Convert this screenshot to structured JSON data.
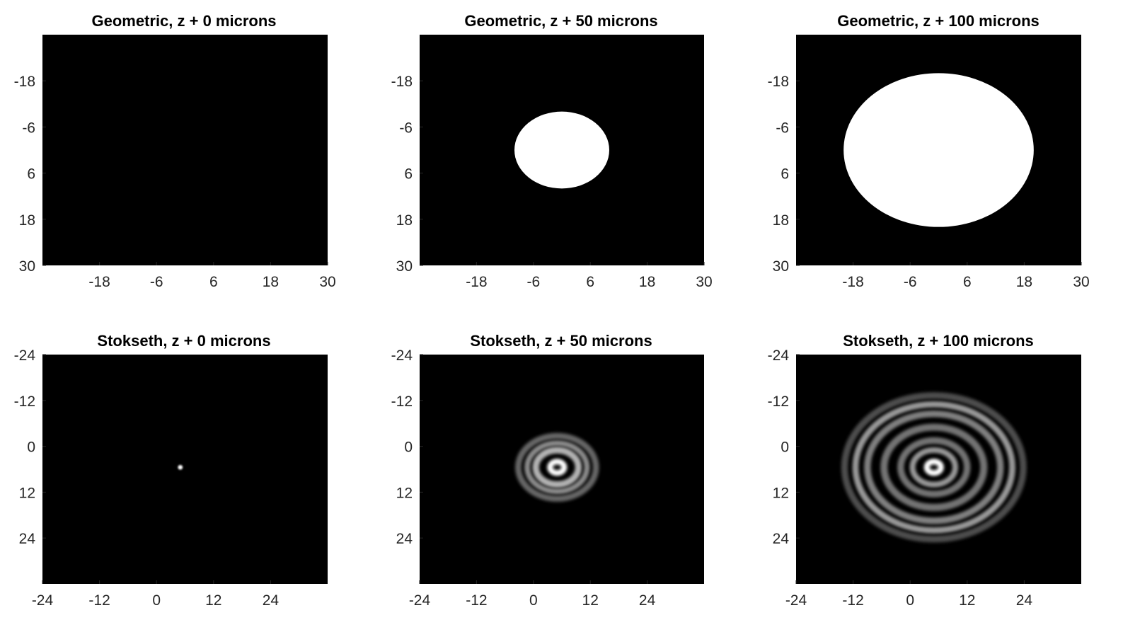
{
  "chart_data": [
    {
      "type": "heatmap",
      "title": "Geometric, z + 0 microns",
      "colormap": "gray",
      "background": "#000000",
      "xticks": [
        -18,
        -6,
        6,
        18,
        30
      ],
      "yticks": [
        -18,
        -6,
        6,
        18,
        30
      ],
      "xlim": [
        -30,
        30
      ],
      "ylim": [
        -30,
        30
      ],
      "y_direction": "down",
      "features": []
    },
    {
      "type": "heatmap",
      "title": "Geometric, z + 50 microns",
      "colormap": "gray",
      "background": "#000000",
      "xticks": [
        -18,
        -6,
        6,
        18,
        30
      ],
      "yticks": [
        -18,
        -6,
        6,
        18,
        30
      ],
      "xlim": [
        -30,
        30
      ],
      "ylim": [
        -30,
        30
      ],
      "y_direction": "down",
      "features": [
        {
          "kind": "disk",
          "cx": 0,
          "cy": 0,
          "rx": 10,
          "ry": 10,
          "intensity": 1.0
        }
      ]
    },
    {
      "type": "heatmap",
      "title": "Geometric, z + 100 microns",
      "colormap": "gray",
      "background": "#000000",
      "xticks": [
        -18,
        -6,
        6,
        18,
        30
      ],
      "yticks": [
        -18,
        -6,
        6,
        18,
        30
      ],
      "xlim": [
        -30,
        30
      ],
      "ylim": [
        -30,
        30
      ],
      "y_direction": "down",
      "features": [
        {
          "kind": "disk",
          "cx": 0,
          "cy": 0,
          "rx": 20,
          "ry": 20,
          "intensity": 1.0
        }
      ]
    },
    {
      "type": "heatmap",
      "title": "Stokseth, z + 0 microns",
      "colormap": "gray",
      "background": "#000000",
      "xticks": [
        -24,
        -12,
        0,
        12,
        24
      ],
      "yticks": [
        -24,
        -12,
        0,
        12,
        24
      ],
      "xlim": [
        -24,
        36
      ],
      "ylim": [
        -24,
        36
      ],
      "y_direction": "down",
      "features": [
        {
          "kind": "spot",
          "cx": 5,
          "cy": 5.5,
          "r": 0.5,
          "intensity": 1.0
        }
      ]
    },
    {
      "type": "heatmap",
      "title": "Stokseth, z + 50 microns",
      "colormap": "gray",
      "background": "#000000",
      "xticks": [
        -24,
        -12,
        0,
        12,
        24
      ],
      "yticks": [
        -24,
        -12,
        0,
        12,
        24
      ],
      "xlim": [
        -24,
        36
      ],
      "ylim": [
        -24,
        36
      ],
      "y_direction": "down",
      "features": [
        {
          "kind": "disk",
          "cx": 5,
          "cy": 5.5,
          "rx": 0.8,
          "ry": 0.8,
          "intensity": 0.05
        },
        {
          "kind": "ring",
          "cx": 5,
          "cy": 5.5,
          "r": 1.5,
          "width": 1.2,
          "intensity": 1.0
        },
        {
          "kind": "ring",
          "cx": 5,
          "cy": 5.5,
          "r": 4.5,
          "width": 1.4,
          "intensity": 0.7
        },
        {
          "kind": "ring",
          "cx": 5,
          "cy": 5.5,
          "r": 6.3,
          "width": 1.2,
          "intensity": 0.55
        },
        {
          "kind": "ring",
          "cx": 5,
          "cy": 5.5,
          "r": 8.2,
          "width": 1.3,
          "intensity": 0.4
        }
      ]
    },
    {
      "type": "heatmap",
      "title": "Stokseth, z + 100 microns",
      "colormap": "gray",
      "background": "#000000",
      "xticks": [
        -24,
        -12,
        0,
        12,
        24
      ],
      "yticks": [
        -24,
        -12,
        0,
        12,
        24
      ],
      "xlim": [
        -24,
        36
      ],
      "ylim": [
        -24,
        36
      ],
      "y_direction": "down",
      "features": [
        {
          "kind": "disk",
          "cx": 5,
          "cy": 5.5,
          "rx": 0.8,
          "ry": 0.8,
          "intensity": 0.05
        },
        {
          "kind": "ring",
          "cx": 5,
          "cy": 5.5,
          "r": 1.5,
          "width": 1.2,
          "intensity": 1.0
        },
        {
          "kind": "ring",
          "cx": 5,
          "cy": 5.5,
          "r": 4.5,
          "width": 1.2,
          "intensity": 0.6
        },
        {
          "kind": "ring",
          "cx": 5,
          "cy": 5.5,
          "r": 7.0,
          "width": 1.4,
          "intensity": 0.45
        },
        {
          "kind": "ring",
          "cx": 5,
          "cy": 5.5,
          "r": 10.5,
          "width": 1.5,
          "intensity": 0.45
        },
        {
          "kind": "ring",
          "cx": 5,
          "cy": 5.5,
          "r": 14.0,
          "width": 1.4,
          "intensity": 0.5
        },
        {
          "kind": "ring",
          "cx": 5,
          "cy": 5.5,
          "r": 16.5,
          "width": 1.3,
          "intensity": 0.6
        },
        {
          "kind": "ring",
          "cx": 5,
          "cy": 5.5,
          "r": 18.8,
          "width": 1.4,
          "intensity": 0.3
        }
      ]
    }
  ]
}
